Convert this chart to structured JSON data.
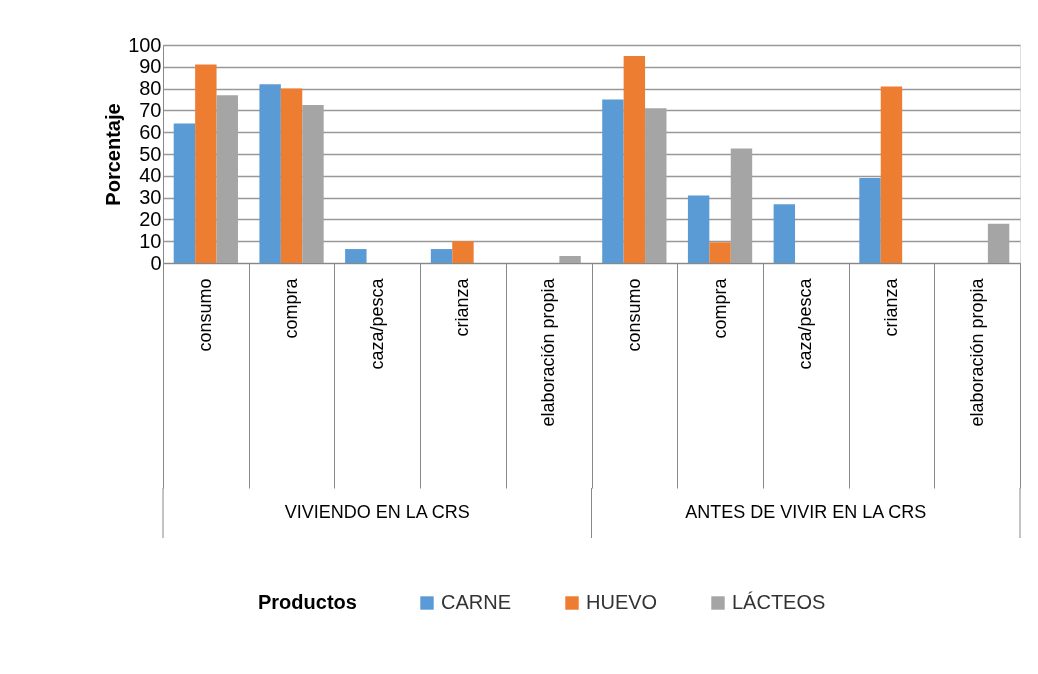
{
  "chart_data": {
    "type": "bar",
    "ylabel": "Porcentaje",
    "legend_title": "Productos",
    "categories": [
      "consumo",
      "compra",
      "caza/pesca",
      "crianza",
      "elaboración propia",
      "consumo",
      "compra",
      "caza/pesca",
      "crianza",
      "elaboración propia"
    ],
    "series": [
      {
        "name": "CARNE",
        "color": "#5b9bd5",
        "values": [
          64,
          82,
          6.4,
          6.4,
          null,
          75,
          31,
          27,
          39,
          null
        ]
      },
      {
        "name": "HUEVO",
        "color": "#ed7d31",
        "values": [
          91,
          80,
          null,
          10,
          null,
          95,
          9.5,
          null,
          81,
          null
        ]
      },
      {
        "name": "LÁCTEOS",
        "color": "#a5a5a5",
        "values": [
          77,
          72.5,
          null,
          null,
          3.2,
          71,
          52.5,
          null,
          null,
          18
        ]
      }
    ],
    "annotations": [
      "VIVIENDO EN LA CRS",
      "ANTES DE VIVIR EN LA CRS"
    ],
    "ylim": [
      0,
      100
    ],
    "yticks": [
      0,
      10,
      20,
      30,
      40,
      50,
      60,
      70,
      80,
      90,
      100
    ],
    "grid": "y",
    "legend": "bottom"
  }
}
